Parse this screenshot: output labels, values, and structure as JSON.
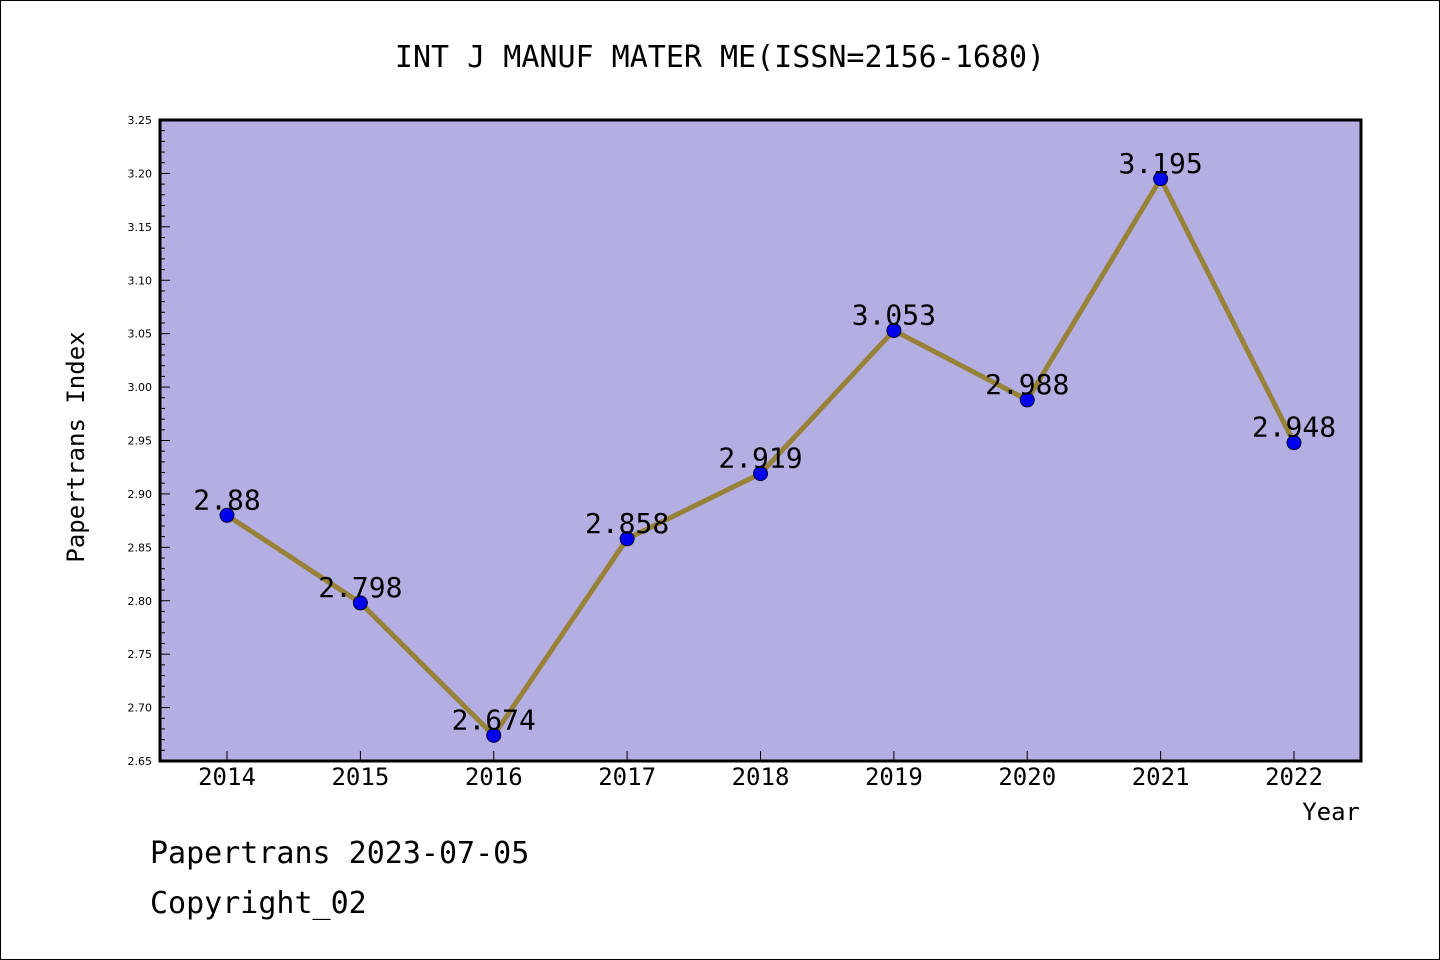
{
  "chart_data": {
    "type": "line",
    "title": "INT J MANUF MATER ME(ISSN=2156-1680)",
    "xlabel": "Year",
    "ylabel": "Papertrans Index",
    "categories": [
      "2014",
      "2015",
      "2016",
      "2017",
      "2018",
      "2019",
      "2020",
      "2021",
      "2022"
    ],
    "values": [
      2.88,
      2.798,
      2.674,
      2.858,
      2.919,
      3.053,
      2.988,
      3.195,
      2.948
    ],
    "data_labels": [
      "2.88",
      "2.798",
      "2.674",
      "2.858",
      "2.919",
      "3.053",
      "2.988",
      "3.195",
      "2.948"
    ],
    "ylim": [
      2.65,
      3.25
    ],
    "yticks": [
      "2.65",
      "2.70",
      "2.75",
      "2.80",
      "2.85",
      "2.90",
      "2.95",
      "3.00",
      "3.05",
      "3.10",
      "3.15",
      "3.20",
      "3.25"
    ],
    "grid": false,
    "colors": {
      "plot_background": "#b4afe3",
      "line": "#978238",
      "marker": "#0000ee"
    }
  },
  "footer": {
    "line1": "Papertrans 2023-07-05",
    "line2": "Copyright_02"
  }
}
